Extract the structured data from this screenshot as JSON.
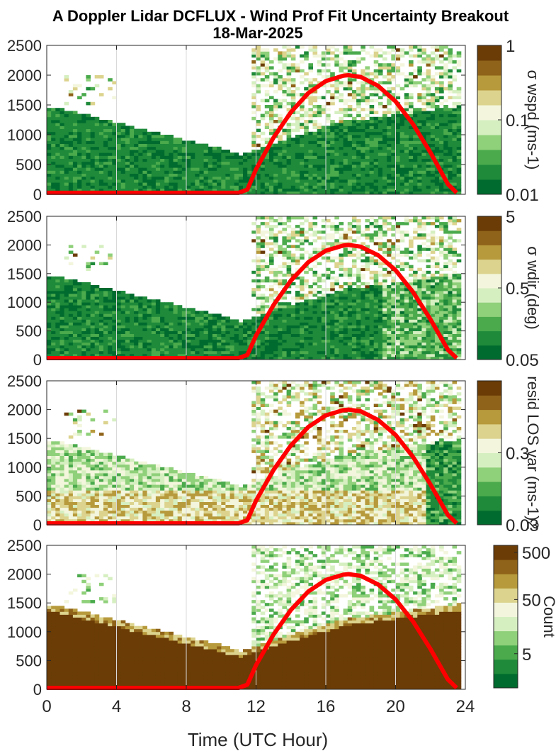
{
  "figure": {
    "title": "A Doppler Lidar DCFLUX - Wind Prof Fit Uncertainty Breakout",
    "subtitle": "18-Mar-2025",
    "xlabel": "Time (UTC Hour)",
    "x_ticks": [
      "0",
      "4",
      "8",
      "12",
      "16",
      "20",
      "24"
    ],
    "y_ticks": [
      "0",
      "500",
      "1000",
      "1500",
      "2000",
      "2500"
    ]
  },
  "colors": {
    "curve": "#ff0000",
    "colormap": [
      "#006b2e",
      "#1e8a3a",
      "#4aaa4c",
      "#8fd07a",
      "#d6efc1",
      "#f3f6dc",
      "#dcd38e",
      "#b79a3c",
      "#8f6319",
      "#6b3c06"
    ]
  },
  "chart_data": [
    {
      "type": "heatmap",
      "panel": "sigma_wspd",
      "xlim": [
        0,
        24
      ],
      "ylim": [
        0,
        2500
      ],
      "grid": true,
      "colorbar": {
        "label": "σ wspd (ms-1)",
        "ticks": [
          "1",
          "0.1",
          "0.01"
        ],
        "scale": "log",
        "range": [
          0.01,
          1
        ]
      },
      "overlay_curve": {
        "x": [
          0,
          11,
          11.5,
          12,
          13,
          14,
          15,
          16,
          17,
          17.3,
          18,
          19,
          20,
          21,
          22,
          23,
          23.5
        ],
        "y": [
          25,
          25,
          80,
          420,
          950,
          1380,
          1700,
          1900,
          1990,
          2000,
          1970,
          1820,
          1560,
          1180,
          700,
          170,
          25
        ]
      }
    },
    {
      "type": "heatmap",
      "panel": "sigma_wdir",
      "xlim": [
        0,
        24
      ],
      "ylim": [
        0,
        2500
      ],
      "grid": true,
      "colorbar": {
        "label": "σ wdir (deg)",
        "ticks": [
          "5",
          "0.5",
          "0.05"
        ],
        "scale": "log",
        "range": [
          0.05,
          5
        ]
      },
      "overlay_curve": {
        "x": [
          0,
          11,
          11.5,
          12,
          13,
          14,
          15,
          16,
          17,
          17.3,
          18,
          19,
          20,
          21,
          22,
          23,
          23.5
        ],
        "y": [
          25,
          25,
          80,
          420,
          950,
          1380,
          1700,
          1900,
          1990,
          2000,
          1970,
          1820,
          1560,
          1180,
          700,
          170,
          25
        ]
      }
    },
    {
      "type": "heatmap",
      "panel": "resid_los_var",
      "xlim": [
        0,
        24
      ],
      "ylim": [
        0,
        2500
      ],
      "grid": true,
      "colorbar": {
        "label": "resid LOS var (ms-1)2",
        "ticks": [
          "0.3",
          "0.03"
        ],
        "scale": "log",
        "range": [
          0.03,
          3
        ]
      },
      "overlay_curve": {
        "x": [
          0,
          11,
          11.5,
          12,
          13,
          14,
          15,
          16,
          17,
          17.3,
          18,
          19,
          20,
          21,
          22,
          23,
          23.5
        ],
        "y": [
          25,
          25,
          80,
          420,
          950,
          1380,
          1700,
          1900,
          1990,
          2000,
          1970,
          1820,
          1560,
          1180,
          700,
          170,
          25
        ]
      }
    },
    {
      "type": "heatmap",
      "panel": "count",
      "xlim": [
        0,
        24
      ],
      "ylim": [
        0,
        2500
      ],
      "grid": true,
      "colorbar": {
        "label": "Count",
        "ticks": [
          "500",
          "50",
          "5"
        ],
        "scale": "log",
        "range": [
          1,
          500
        ]
      },
      "overlay_curve": {
        "x": [
          0,
          11,
          11.5,
          12,
          13,
          14,
          15,
          16,
          17,
          17.3,
          18,
          19,
          20,
          21,
          22,
          23,
          23.5
        ],
        "y": [
          25,
          25,
          80,
          420,
          950,
          1380,
          1700,
          1900,
          1990,
          2000,
          1970,
          1820,
          1560,
          1180,
          700,
          170,
          25
        ]
      }
    }
  ]
}
